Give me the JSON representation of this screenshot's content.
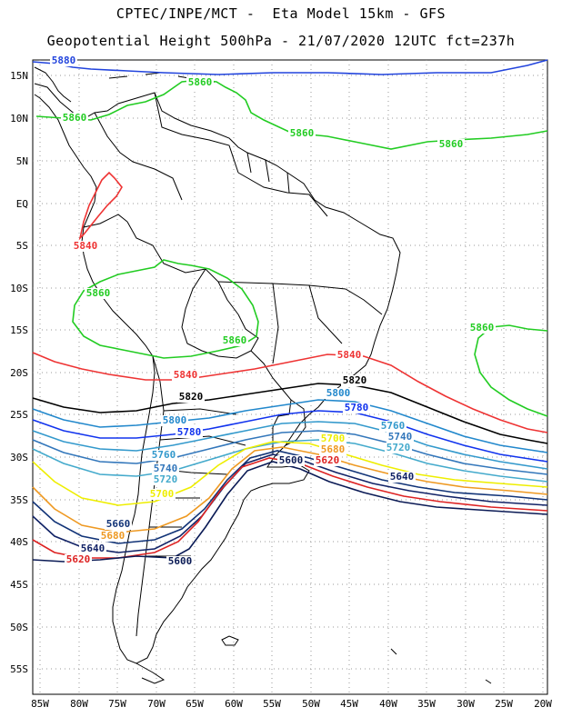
{
  "title": {
    "line1": "CPTEC/INPE/MCT -  Eta Model 15km - GFS",
    "line2": "Geopotential Height 500hPa - 21/07/2020 12UTC fct=237h"
  },
  "axes": {
    "lat_labels": [
      "15N",
      "10N",
      "5N",
      "EQ",
      "5S",
      "10S",
      "15S",
      "20S",
      "25S",
      "30S",
      "35S",
      "40S",
      "45S",
      "50S",
      "55S"
    ],
    "lon_labels": [
      "85W",
      "80W",
      "75W",
      "70W",
      "65W",
      "60W",
      "55W",
      "50W",
      "45W",
      "40W",
      "35W",
      "30W",
      "25W",
      "20W"
    ]
  },
  "contour_colors": {
    "5880": "#2244dd",
    "5860": "#22cc22",
    "5840": "#ee3333",
    "5820": "#000000",
    "5800": "#2288cc",
    "5780": "#1133ee",
    "5760": "#3399cc",
    "5740": "#3377bb",
    "5720": "#44aacc",
    "5700": "#eeee00",
    "5680": "#ee9922",
    "5660": "#113377",
    "5640": "#112266",
    "5620": "#dd2222",
    "5600": "#0a1a55"
  },
  "contour_labels": [
    {
      "text": "5880",
      "level": "5880"
    },
    {
      "text": "5860",
      "level": "5860"
    },
    {
      "text": "5860",
      "level": "5860"
    },
    {
      "text": "5860",
      "level": "5860"
    },
    {
      "text": "5860",
      "level": "5860"
    },
    {
      "text": "5860",
      "level": "5860"
    },
    {
      "text": "5860",
      "level": "5860"
    },
    {
      "text": "5860",
      "level": "5860"
    },
    {
      "text": "5840",
      "level": "5840"
    },
    {
      "text": "5840",
      "level": "5840"
    },
    {
      "text": "5840",
      "level": "5840"
    },
    {
      "text": "5820",
      "level": "5820"
    },
    {
      "text": "5820",
      "level": "5820"
    },
    {
      "text": "5800",
      "level": "5800"
    },
    {
      "text": "5800",
      "level": "5800"
    },
    {
      "text": "5780",
      "level": "5780"
    },
    {
      "text": "5780",
      "level": "5780"
    },
    {
      "text": "5760",
      "level": "5760"
    },
    {
      "text": "5760",
      "level": "5760"
    },
    {
      "text": "5740",
      "level": "5740"
    },
    {
      "text": "5740",
      "level": "5740"
    },
    {
      "text": "5720",
      "level": "5720"
    },
    {
      "text": "5720",
      "level": "5720"
    },
    {
      "text": "5700",
      "level": "5700"
    },
    {
      "text": "5700",
      "level": "5700"
    },
    {
      "text": "5680",
      "level": "5680"
    },
    {
      "text": "5680",
      "level": "5680"
    },
    {
      "text": "5660",
      "level": "5660"
    },
    {
      "text": "5640",
      "level": "5640"
    },
    {
      "text": "5640",
      "level": "5640"
    },
    {
      "text": "5620",
      "level": "5620"
    },
    {
      "text": "5620",
      "level": "5620"
    },
    {
      "text": "5600",
      "level": "5600"
    },
    {
      "text": "5600",
      "level": "5600"
    }
  ]
}
